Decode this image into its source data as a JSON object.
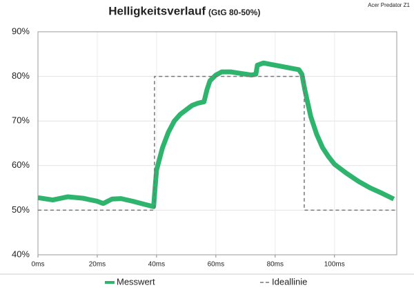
{
  "chart_data": {
    "type": "line",
    "title": "Helligkeitsverlauf",
    "subtitle": "(GtG 80-50%)",
    "annotation": "Acer Predator Z1",
    "xlim": [
      0,
      121
    ],
    "xticks": [
      {
        "value": 0,
        "label": "0ms"
      },
      {
        "value": 20,
        "label": "20ms"
      },
      {
        "value": 40,
        "label": "40ms"
      },
      {
        "value": 60,
        "label": "60ms"
      },
      {
        "value": 80,
        "label": "80ms"
      },
      {
        "value": 100,
        "label": "100ms"
      }
    ],
    "ylim": [
      40,
      90
    ],
    "yticks": [
      {
        "value": 40,
        "label": "40%"
      },
      {
        "value": 50,
        "label": "50%"
      },
      {
        "value": 60,
        "label": "60%"
      },
      {
        "value": 70,
        "label": "70%"
      },
      {
        "value": 80,
        "label": "80%"
      },
      {
        "value": 90,
        "label": "90%"
      }
    ],
    "grid": true,
    "series": [
      {
        "name": "Messwert",
        "color": "#2fb46e",
        "style": "solid",
        "x": [
          0,
          5,
          10,
          15,
          20,
          22,
          25,
          28,
          32,
          36,
          39,
          39.5,
          40,
          42,
          44,
          46,
          48,
          50,
          52,
          54,
          56,
          57,
          58,
          60,
          62,
          65,
          68,
          70,
          72,
          73.5,
          74,
          76,
          80,
          84,
          88,
          89,
          90,
          92,
          94,
          96,
          98,
          100,
          104,
          108,
          112,
          116,
          120
        ],
        "values": [
          52.8,
          52.3,
          53,
          52.7,
          52,
          51.5,
          52.5,
          52.6,
          52,
          51.3,
          50.8,
          55,
          59,
          64,
          67.5,
          70,
          71.5,
          72.5,
          73.5,
          74,
          74.3,
          77,
          79,
          80.3,
          81,
          81,
          80.7,
          80.5,
          80.3,
          80.5,
          82.5,
          83,
          82.5,
          82,
          81.5,
          80.5,
          77,
          71,
          67,
          64,
          62,
          60.3,
          58.3,
          56.5,
          55,
          53.8,
          52.5
        ]
      },
      {
        "name": "Ideallinie",
        "color": "#777777",
        "style": "dashed",
        "x": [
          0,
          39.3,
          39.3,
          89.8,
          89.8,
          121
        ],
        "values": [
          50,
          50,
          80,
          80,
          50,
          50
        ]
      }
    ]
  }
}
